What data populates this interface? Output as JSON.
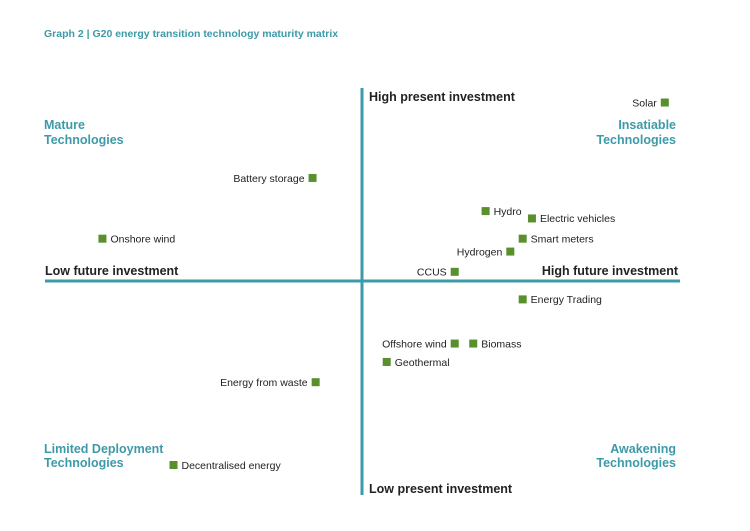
{
  "chart_data": {
    "type": "scatter",
    "title": "Graph 2  |  G20 energy transition technology maturity matrix",
    "axes": {
      "x_low": "Low future investment",
      "x_high": "High future investment",
      "y_high": "High present investment",
      "y_low": "Low present investment"
    },
    "quadrants": {
      "top_left": [
        "Mature",
        "Technologies"
      ],
      "top_right": [
        "Insatiable",
        "Technologies"
      ],
      "bottom_left": [
        "Limited Deployment",
        "Technologies"
      ],
      "bottom_right": [
        "Awakening",
        "Technologies"
      ]
    },
    "xlim": [
      -100,
      100
    ],
    "ylim": [
      -100,
      100
    ],
    "colors": {
      "axis": "#3d9aa8",
      "marker": "#5a8f2e",
      "title": "#3d9aa8"
    },
    "points": [
      {
        "name": "Solar",
        "x": 98,
        "y": 97,
        "label_side": "left"
      },
      {
        "name": "Battery storage",
        "x": -16,
        "y": 56,
        "label_side": "left"
      },
      {
        "name": "Hydro",
        "x": 40,
        "y": 38,
        "label_side": "right"
      },
      {
        "name": "Electric vehicles",
        "x": 55,
        "y": 34,
        "label_side": "right"
      },
      {
        "name": "Onshore wind",
        "x": -84,
        "y": 23,
        "label_side": "right"
      },
      {
        "name": "Smart meters",
        "x": 52,
        "y": 23,
        "label_side": "right"
      },
      {
        "name": "Hydrogen",
        "x": 48,
        "y": 16,
        "label_side": "left"
      },
      {
        "name": "CCUS",
        "x": 30,
        "y": 5,
        "label_side": "left"
      },
      {
        "name": "Energy Trading",
        "x": 52,
        "y": -10,
        "label_side": "right"
      },
      {
        "name": "Offshore wind",
        "x": 30,
        "y": -34,
        "label_side": "left"
      },
      {
        "name": "Biomass",
        "x": 36,
        "y": -34,
        "label_side": "right"
      },
      {
        "name": "Geothermal",
        "x": 8,
        "y": -44,
        "label_side": "right"
      },
      {
        "name": "Energy from waste",
        "x": -15,
        "y": -55,
        "label_side": "left"
      },
      {
        "name": "Decentralised energy",
        "x": -61,
        "y": -100,
        "label_side": "right"
      }
    ]
  }
}
